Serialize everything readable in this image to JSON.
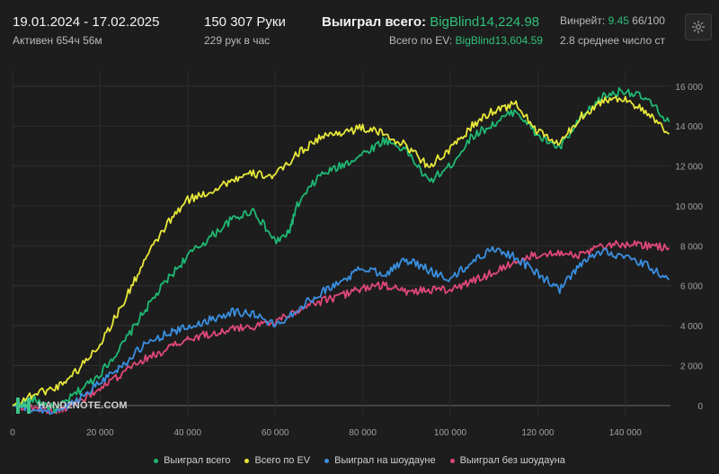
{
  "header": {
    "date_range": "19.01.2024 - 17.02.2025",
    "active_time": "Активен 654ч 56м",
    "hands": "150 307 Руки",
    "hands_per_hour": "229 рук в час",
    "won_total_label": "Выиграл всего:",
    "won_total_value": "BigBlind14,224.98",
    "ev_total_label": "Всего по EV:",
    "ev_total_value": "BigBlind13,604.59",
    "winrate_label": "Винрейт:",
    "winrate_value": "9.45",
    "winrate_rest": "66/100",
    "avg_label": "2.8 среднее число ст"
  },
  "settings_icon": "gear-icon",
  "watermark": {
    "brand": "HAND2NOTE.COM",
    "icon": "h2n-logo-icon"
  },
  "chart_data": {
    "type": "line",
    "title": "",
    "xlabel": "",
    "ylabel": "",
    "xlim": [
      0,
      150307
    ],
    "ylim": [
      -500,
      16800
    ],
    "x_ticks": [
      0,
      20000,
      40000,
      60000,
      80000,
      100000,
      120000,
      140000
    ],
    "x_tick_labels": [
      "0",
      "20 000",
      "40 000",
      "60 000",
      "80 000",
      "100 000",
      "120 000",
      "140 000"
    ],
    "y_ticks": [
      0,
      2000,
      4000,
      6000,
      8000,
      10000,
      12000,
      14000,
      16000
    ],
    "y_tick_labels": [
      "0",
      "2 000",
      "4 000",
      "6 000",
      "8 000",
      "10 000",
      "12 000",
      "14 000",
      "16 000"
    ],
    "grid": true,
    "legend_position": "bottom",
    "series": [
      {
        "name": "Выиграл всего",
        "color": "#1fb873",
        "points": [
          [
            0,
            0
          ],
          [
            5000,
            300
          ],
          [
            10000,
            -200
          ],
          [
            15000,
            700
          ],
          [
            20000,
            1600
          ],
          [
            25000,
            3000
          ],
          [
            30000,
            4700
          ],
          [
            35000,
            6200
          ],
          [
            40000,
            7500
          ],
          [
            45000,
            8400
          ],
          [
            50000,
            9300
          ],
          [
            55000,
            9800
          ],
          [
            60000,
            8200
          ],
          [
            63000,
            8600
          ],
          [
            65000,
            10000
          ],
          [
            70000,
            11500
          ],
          [
            75000,
            12000
          ],
          [
            80000,
            12600
          ],
          [
            85000,
            13300
          ],
          [
            90000,
            12800
          ],
          [
            95000,
            11200
          ],
          [
            100000,
            12000
          ],
          [
            105000,
            13500
          ],
          [
            110000,
            14100
          ],
          [
            115000,
            14800
          ],
          [
            120000,
            13500
          ],
          [
            125000,
            12900
          ],
          [
            130000,
            14400
          ],
          [
            135000,
            15500
          ],
          [
            140000,
            15800
          ],
          [
            145000,
            15300
          ],
          [
            150000,
            14200
          ]
        ]
      },
      {
        "name": "Всего по EV",
        "color": "#e8e83a",
        "points": [
          [
            0,
            0
          ],
          [
            5000,
            600
          ],
          [
            10000,
            900
          ],
          [
            15000,
            1800
          ],
          [
            20000,
            3100
          ],
          [
            25000,
            5000
          ],
          [
            30000,
            7200
          ],
          [
            35000,
            9000
          ],
          [
            40000,
            10300
          ],
          [
            45000,
            10700
          ],
          [
            50000,
            11300
          ],
          [
            55000,
            11600
          ],
          [
            60000,
            11500
          ],
          [
            65000,
            12600
          ],
          [
            70000,
            13400
          ],
          [
            75000,
            13700
          ],
          [
            80000,
            13900
          ],
          [
            85000,
            13600
          ],
          [
            90000,
            13000
          ],
          [
            95000,
            12000
          ],
          [
            100000,
            12800
          ],
          [
            105000,
            14000
          ],
          [
            110000,
            14800
          ],
          [
            115000,
            15100
          ],
          [
            120000,
            13700
          ],
          [
            125000,
            13100
          ],
          [
            130000,
            14500
          ],
          [
            135000,
            15300
          ],
          [
            140000,
            15400
          ],
          [
            145000,
            14600
          ],
          [
            150000,
            13600
          ]
        ]
      },
      {
        "name": "Выиграл на шоудауне",
        "color": "#3a8fe0",
        "points": [
          [
            0,
            0
          ],
          [
            5000,
            -200
          ],
          [
            10000,
            -300
          ],
          [
            15000,
            300
          ],
          [
            20000,
            1200
          ],
          [
            25000,
            2000
          ],
          [
            30000,
            3000
          ],
          [
            35000,
            3600
          ],
          [
            40000,
            3900
          ],
          [
            45000,
            4300
          ],
          [
            50000,
            4700
          ],
          [
            55000,
            4600
          ],
          [
            60000,
            4000
          ],
          [
            65000,
            4800
          ],
          [
            70000,
            5600
          ],
          [
            75000,
            6200
          ],
          [
            80000,
            6900
          ],
          [
            85000,
            6600
          ],
          [
            90000,
            7300
          ],
          [
            95000,
            6800
          ],
          [
            100000,
            6300
          ],
          [
            105000,
            7200
          ],
          [
            110000,
            7900
          ],
          [
            115000,
            7400
          ],
          [
            120000,
            6600
          ],
          [
            125000,
            5800
          ],
          [
            130000,
            7100
          ],
          [
            135000,
            7800
          ],
          [
            140000,
            7400
          ],
          [
            145000,
            7000
          ],
          [
            150000,
            6300
          ]
        ]
      },
      {
        "name": "Выиграл без шоудауна",
        "color": "#e04878",
        "points": [
          [
            0,
            0
          ],
          [
            5000,
            -100
          ],
          [
            10000,
            -300
          ],
          [
            15000,
            200
          ],
          [
            20000,
            800
          ],
          [
            25000,
            1600
          ],
          [
            30000,
            2300
          ],
          [
            35000,
            2800
          ],
          [
            40000,
            3300
          ],
          [
            45000,
            3600
          ],
          [
            50000,
            3800
          ],
          [
            55000,
            4000
          ],
          [
            60000,
            4200
          ],
          [
            65000,
            4800
          ],
          [
            70000,
            5200
          ],
          [
            75000,
            5500
          ],
          [
            80000,
            5900
          ],
          [
            85000,
            6000
          ],
          [
            90000,
            5700
          ],
          [
            95000,
            5800
          ],
          [
            100000,
            5800
          ],
          [
            105000,
            6200
          ],
          [
            110000,
            6700
          ],
          [
            115000,
            7200
          ],
          [
            120000,
            7600
          ],
          [
            125000,
            7700
          ],
          [
            130000,
            7500
          ],
          [
            135000,
            8000
          ],
          [
            140000,
            8100
          ],
          [
            145000,
            8000
          ],
          [
            150000,
            7900
          ]
        ]
      }
    ]
  }
}
